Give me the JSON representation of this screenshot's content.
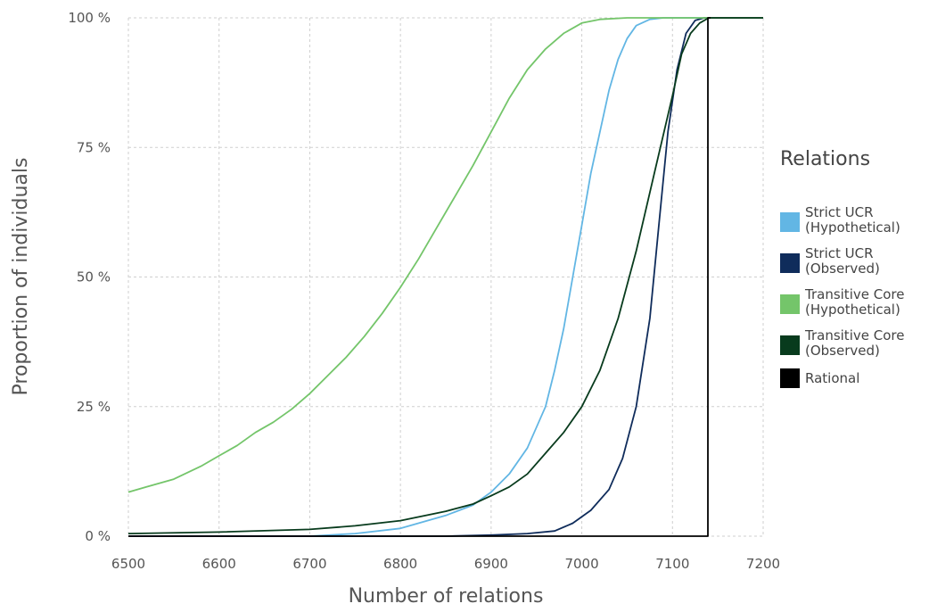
{
  "chart_data": {
    "type": "line",
    "xlabel": "Number of relations",
    "ylabel": "Proportion of individuals",
    "xlim": [
      6500,
      7200
    ],
    "ylim": [
      0,
      1
    ],
    "xticks": [
      6500,
      6600,
      6700,
      6800,
      6900,
      7000,
      7100,
      7200
    ],
    "yticks": [
      {
        "value": 0,
        "label": "0 %"
      },
      {
        "value": 0.25,
        "label": "25 %"
      },
      {
        "value": 0.5,
        "label": "50 %"
      },
      {
        "value": 0.75,
        "label": "75 %"
      },
      {
        "value": 1,
        "label": "100 %"
      }
    ],
    "grid": true,
    "legend": {
      "title": "Relations",
      "position": "right",
      "entries": [
        {
          "lines": [
            "Strict UCR",
            "(Hypothetical)"
          ],
          "color": "#62b6e4"
        },
        {
          "lines": [
            "Strict UCR",
            "(Observed)"
          ],
          "color": "#0f2c5b"
        },
        {
          "lines": [
            "Transitive Core",
            "(Hypothetical)"
          ],
          "color": "#74c56a"
        },
        {
          "lines": [
            "Transitive Core",
            "(Observed)"
          ],
          "color": "#083b1d"
        },
        {
          "lines": [
            "Rational"
          ],
          "color": "#000000"
        }
      ]
    },
    "series": [
      {
        "name": "Strict UCR (Hypothetical)",
        "color": "#62b6e4",
        "points": [
          [
            6500,
            0.0
          ],
          [
            6700,
            0.0
          ],
          [
            6750,
            0.005
          ],
          [
            6800,
            0.015
          ],
          [
            6850,
            0.04
          ],
          [
            6880,
            0.06
          ],
          [
            6900,
            0.085
          ],
          [
            6920,
            0.12
          ],
          [
            6940,
            0.17
          ],
          [
            6960,
            0.25
          ],
          [
            6970,
            0.32
          ],
          [
            6980,
            0.4
          ],
          [
            6990,
            0.5
          ],
          [
            7000,
            0.6
          ],
          [
            7010,
            0.7
          ],
          [
            7020,
            0.78
          ],
          [
            7030,
            0.86
          ],
          [
            7040,
            0.92
          ],
          [
            7050,
            0.96
          ],
          [
            7060,
            0.985
          ],
          [
            7075,
            0.997
          ],
          [
            7090,
            1.0
          ],
          [
            7200,
            1.0
          ]
        ]
      },
      {
        "name": "Strict UCR (Observed)",
        "color": "#0f2c5b",
        "points": [
          [
            6500,
            0.0
          ],
          [
            6850,
            0.0
          ],
          [
            6900,
            0.002
          ],
          [
            6940,
            0.005
          ],
          [
            6970,
            0.01
          ],
          [
            6990,
            0.025
          ],
          [
            7010,
            0.05
          ],
          [
            7030,
            0.09
          ],
          [
            7045,
            0.15
          ],
          [
            7060,
            0.25
          ],
          [
            7075,
            0.42
          ],
          [
            7085,
            0.6
          ],
          [
            7095,
            0.78
          ],
          [
            7105,
            0.9
          ],
          [
            7115,
            0.97
          ],
          [
            7125,
            0.995
          ],
          [
            7135,
            1.0
          ],
          [
            7200,
            1.0
          ]
        ]
      },
      {
        "name": "Transitive Core (Hypothetical)",
        "color": "#74c56a",
        "points": [
          [
            6500,
            0.085
          ],
          [
            6520,
            0.095
          ],
          [
            6550,
            0.11
          ],
          [
            6580,
            0.135
          ],
          [
            6600,
            0.155
          ],
          [
            6620,
            0.175
          ],
          [
            6640,
            0.2
          ],
          [
            6660,
            0.22
          ],
          [
            6680,
            0.245
          ],
          [
            6700,
            0.275
          ],
          [
            6720,
            0.31
          ],
          [
            6740,
            0.345
          ],
          [
            6760,
            0.385
          ],
          [
            6780,
            0.43
          ],
          [
            6800,
            0.48
          ],
          [
            6820,
            0.535
          ],
          [
            6840,
            0.595
          ],
          [
            6860,
            0.655
          ],
          [
            6880,
            0.715
          ],
          [
            6900,
            0.78
          ],
          [
            6920,
            0.845
          ],
          [
            6940,
            0.9
          ],
          [
            6960,
            0.94
          ],
          [
            6980,
            0.97
          ],
          [
            7000,
            0.99
          ],
          [
            7020,
            0.997
          ],
          [
            7050,
            1.0
          ],
          [
            7200,
            1.0
          ]
        ]
      },
      {
        "name": "Transitive Core (Observed)",
        "color": "#083b1d",
        "points": [
          [
            6500,
            0.005
          ],
          [
            6600,
            0.008
          ],
          [
            6700,
            0.013
          ],
          [
            6750,
            0.02
          ],
          [
            6800,
            0.03
          ],
          [
            6850,
            0.048
          ],
          [
            6880,
            0.062
          ],
          [
            6900,
            0.078
          ],
          [
            6920,
            0.095
          ],
          [
            6940,
            0.12
          ],
          [
            6960,
            0.16
          ],
          [
            6980,
            0.2
          ],
          [
            7000,
            0.25
          ],
          [
            7020,
            0.32
          ],
          [
            7040,
            0.42
          ],
          [
            7060,
            0.55
          ],
          [
            7080,
            0.7
          ],
          [
            7100,
            0.85
          ],
          [
            7110,
            0.93
          ],
          [
            7120,
            0.97
          ],
          [
            7130,
            0.99
          ],
          [
            7140,
            1.0
          ],
          [
            7200,
            1.0
          ]
        ]
      },
      {
        "name": "Rational",
        "color": "#000000",
        "points": [
          [
            6500,
            0.0
          ],
          [
            7139,
            0.0
          ],
          [
            7139,
            1.0
          ],
          [
            7142,
            1.0
          ]
        ]
      }
    ]
  }
}
